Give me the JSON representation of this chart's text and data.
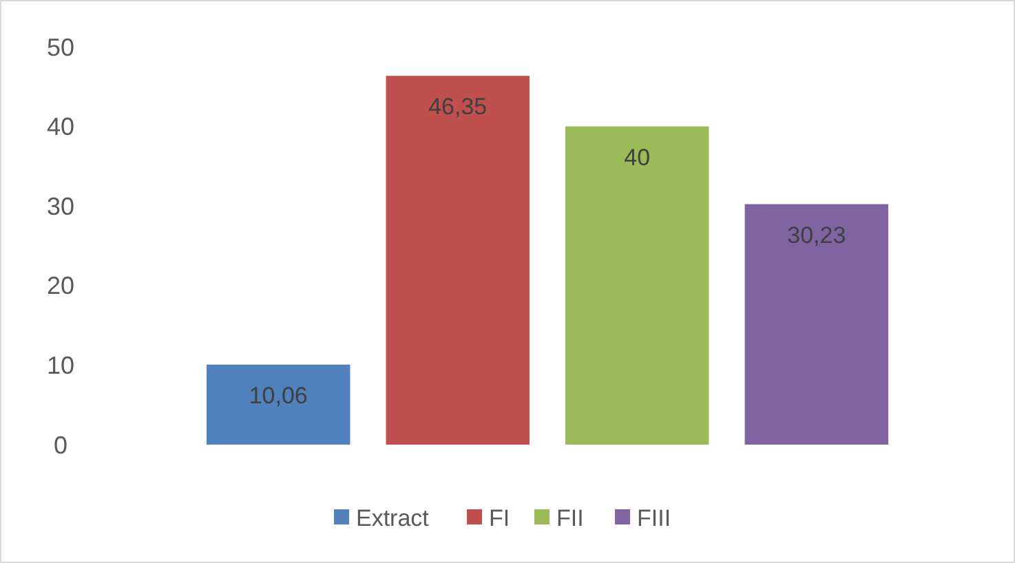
{
  "chart_data": {
    "type": "bar",
    "categories": [
      null
    ],
    "series": [
      {
        "name": "Extract",
        "color": "#4f81bd",
        "values": [
          10.06
        ],
        "value_labels": [
          "10,06"
        ]
      },
      {
        "name": "FI",
        "color": "#c0504d",
        "values": [
          46.35
        ],
        "value_labels": [
          "46,35"
        ]
      },
      {
        "name": "FII",
        "color": "#9bbb59",
        "values": [
          40
        ],
        "value_labels": [
          "40"
        ]
      },
      {
        "name": "FIII",
        "color": "#8064a2",
        "values": [
          30.23
        ],
        "value_labels": [
          "30,23"
        ]
      }
    ],
    "ylim": [
      0,
      50
    ],
    "yticks": [
      0,
      10,
      20,
      30,
      40,
      50
    ],
    "grid": false,
    "legend": "bottom"
  }
}
